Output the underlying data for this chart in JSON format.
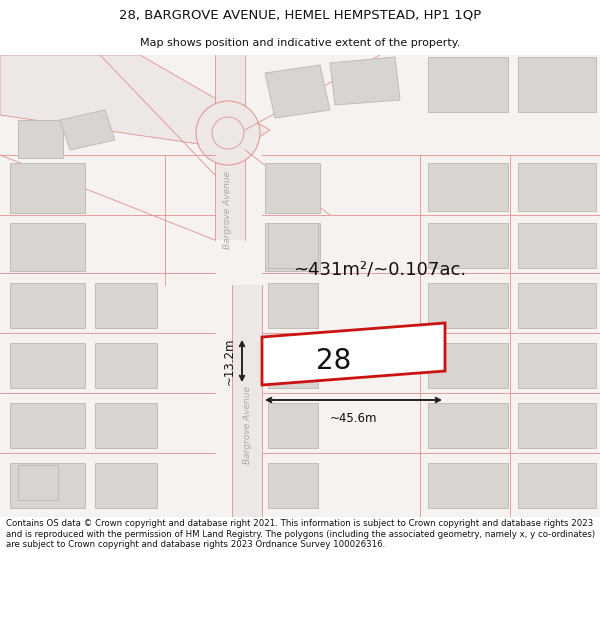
{
  "title_line1": "28, BARGROVE AVENUE, HEMEL HEMPSTEAD, HP1 1QP",
  "title_line2": "Map shows position and indicative extent of the property.",
  "footer_text": "Contains OS data © Crown copyright and database right 2021. This information is subject to Crown copyright and database rights 2023 and is reproduced with the permission of HM Land Registry. The polygons (including the associated geometry, namely x, y co-ordinates) are subject to Crown copyright and database rights 2023 Ordnance Survey 100026316.",
  "area_label": "~431m²/~0.107ac.",
  "width_label": "~45.6m",
  "height_label": "~13.2m",
  "property_number": "28",
  "map_bg": "#f7f4f4",
  "building_fill": "#d8d4d0",
  "building_edge": "#c0bcb8",
  "road_fill": "#ece8e4",
  "road_line": "#e09090",
  "property_outline": "#cc1111",
  "property_fill": "#ffffff",
  "dim_color": "#222222",
  "text_color": "#111111",
  "road_text_color": "#aaaaaa",
  "title_bg": "#ffffff",
  "footer_bg": "#ffffff"
}
